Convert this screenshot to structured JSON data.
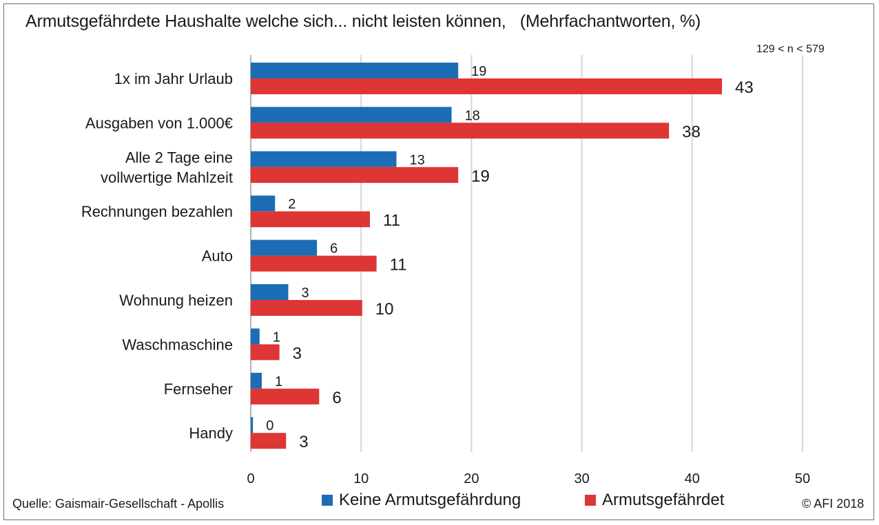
{
  "header": {
    "title": "Armutsgefährdete Haushalte welche sich... nicht leisten können,",
    "subtitle": "(Mehrfachantworten, %)",
    "sample_note": "129 < n < 579"
  },
  "footer": {
    "source": "Quelle: Gaismair-Gesellschaft - Apollis",
    "copyright": "© AFI 2018"
  },
  "colors": {
    "series_blue": "#1c6db5",
    "series_red": "#de3535",
    "grid": "#d6d6d6",
    "axis": "#9a9a9a"
  },
  "chart_data": {
    "type": "bar",
    "orientation": "horizontal",
    "categories": [
      [
        "1x im Jahr Urlaub"
      ],
      [
        "Ausgaben von 1.000€"
      ],
      [
        "Alle 2 Tage eine",
        "vollwertige Mahlzeit"
      ],
      [
        "Rechnungen bezahlen"
      ],
      [
        "Auto"
      ],
      [
        "Wohnung heizen"
      ],
      [
        "Waschmaschine"
      ],
      [
        "Fernseher"
      ],
      [
        "Handy"
      ]
    ],
    "series": [
      {
        "name": "Keine Armutsgefährdung",
        "color": "#1c6db5",
        "values": [
          18.8,
          18.2,
          13.2,
          2.2,
          6.0,
          3.4,
          0.8,
          1.0,
          0.2
        ],
        "labels": [
          "19",
          "18",
          "13",
          "2",
          "6",
          "3",
          "1",
          "1",
          "0"
        ]
      },
      {
        "name": "Armutsgefährdet",
        "color": "#de3535",
        "values": [
          42.7,
          37.9,
          18.8,
          10.8,
          11.4,
          10.1,
          2.6,
          6.2,
          3.2
        ],
        "labels": [
          "43",
          "38",
          "19",
          "11",
          "11",
          "10",
          "3",
          "6",
          "3"
        ]
      }
    ],
    "xlim": [
      0,
      50
    ],
    "xticks": [
      0,
      10,
      20,
      30,
      40,
      50
    ],
    "xtick_labels": [
      "0",
      "10",
      "20",
      "30",
      "40",
      "50"
    ],
    "grid": true,
    "legend": "bottom-center"
  }
}
